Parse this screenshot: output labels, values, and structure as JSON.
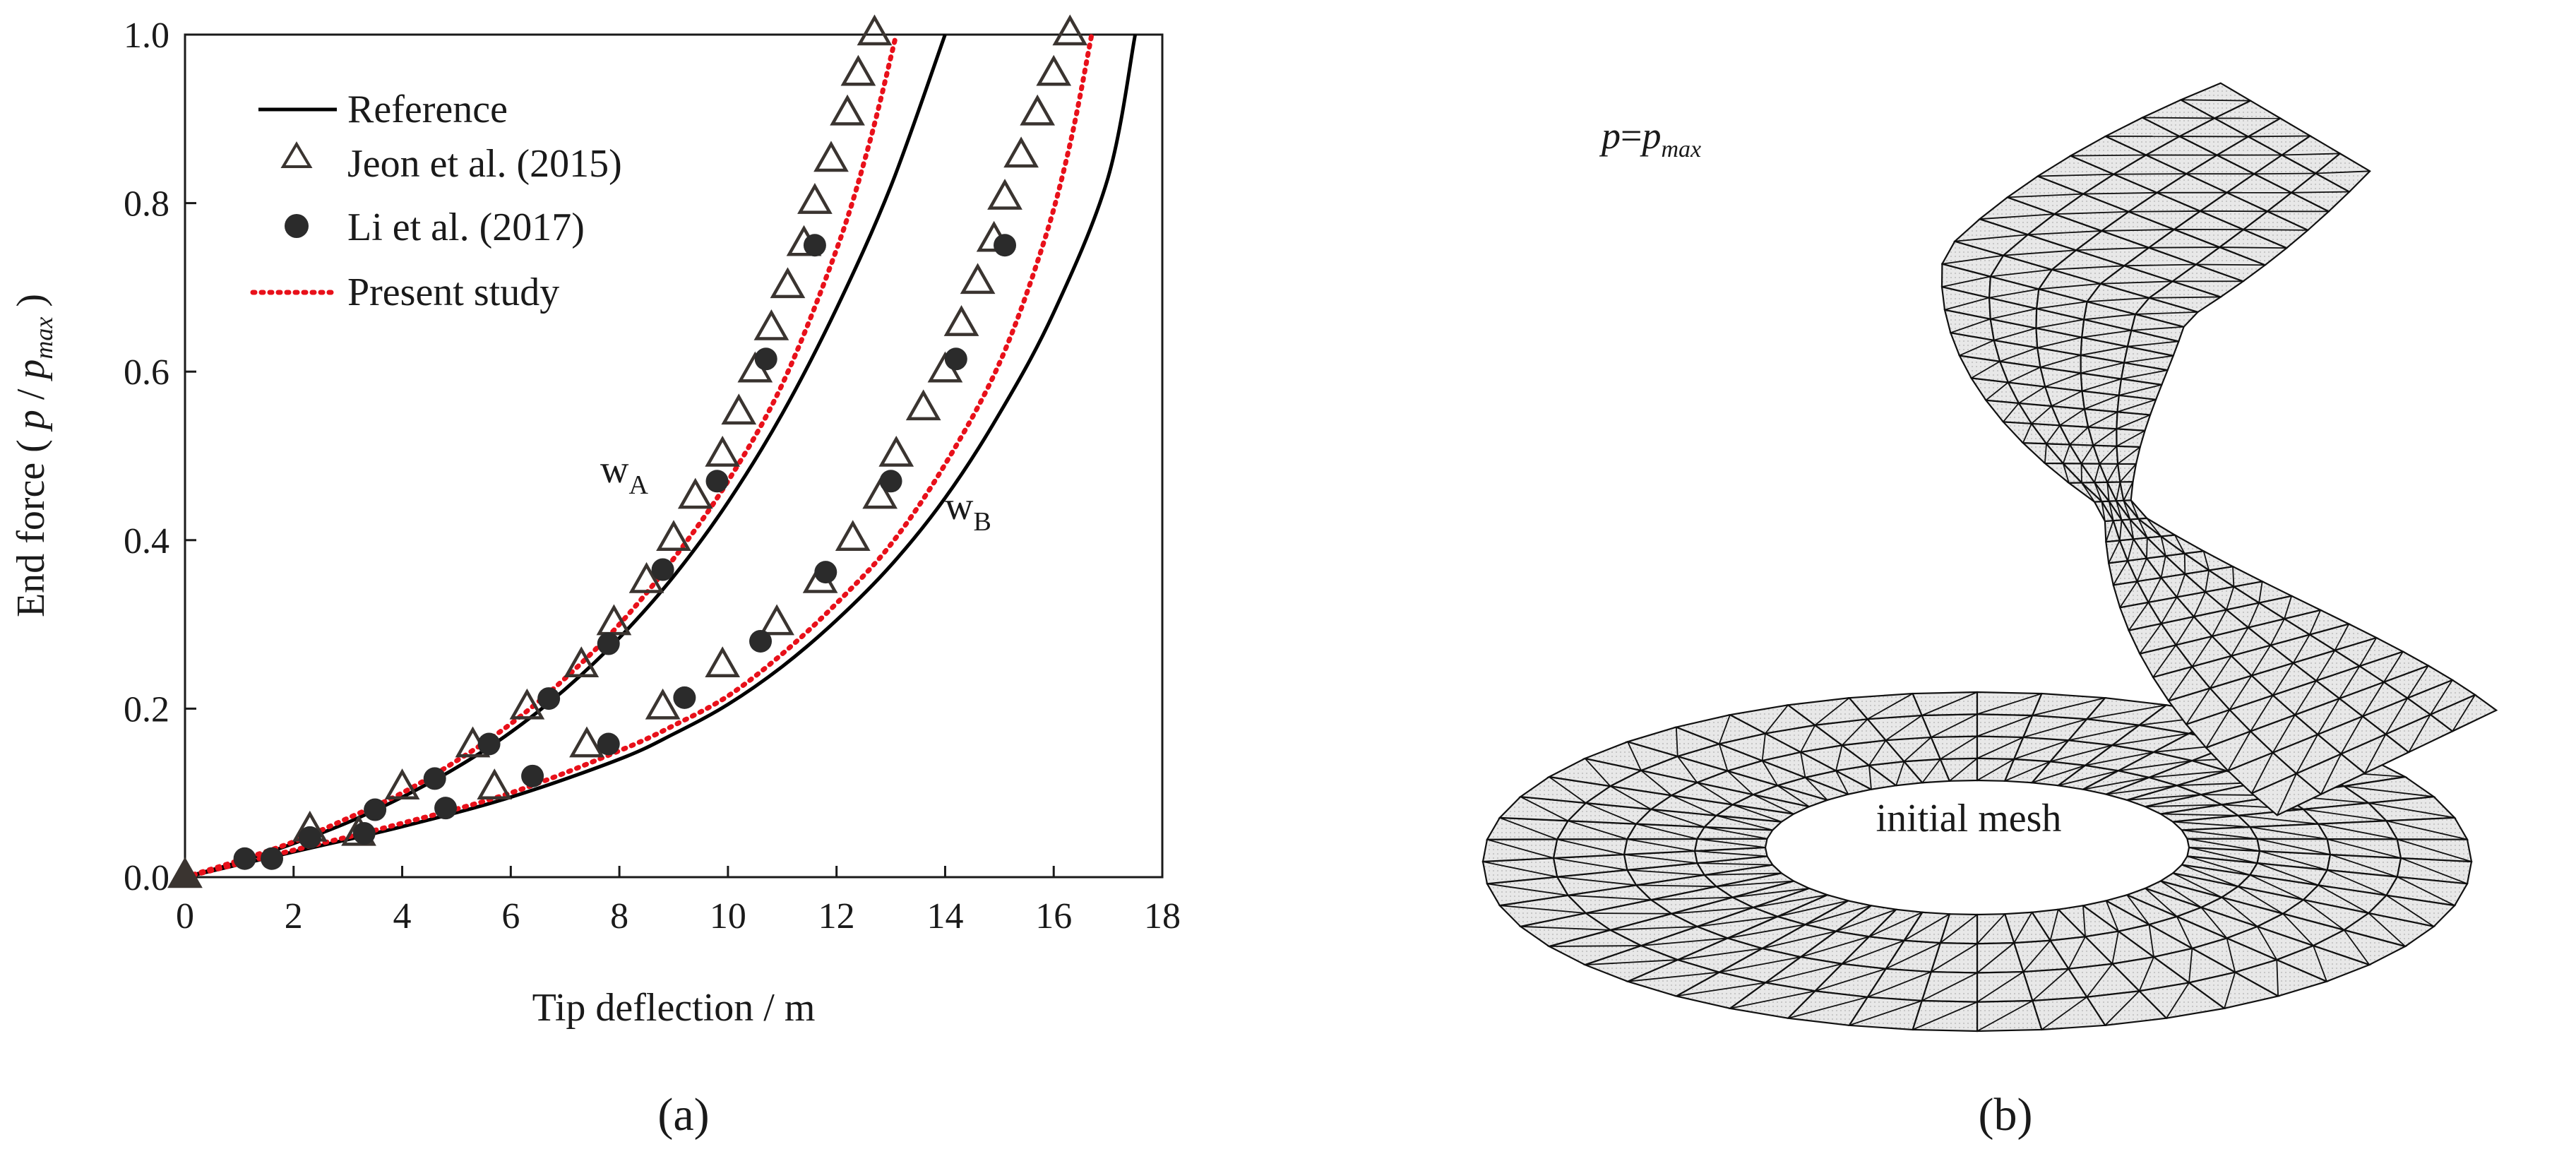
{
  "figure": {
    "panel_a_label": "(a)",
    "panel_b_label": "(b)"
  },
  "chart_data": {
    "type": "scatter",
    "xlabel": "Tip deflection / m",
    "ylabel_parts": {
      "prefix": "End force ( ",
      "p": "p",
      "slash": " / ",
      "p2": "p",
      "sub": "max",
      "suffix": " )"
    },
    "xlim": [
      0,
      18
    ],
    "ylim": [
      0,
      1.0
    ],
    "xticks": [
      0,
      2,
      4,
      6,
      8,
      10,
      12,
      14,
      16,
      18
    ],
    "yticks": [
      0.0,
      0.2,
      0.4,
      0.6,
      0.8,
      1.0
    ],
    "ytick_labels": [
      "0.0",
      "0.2",
      "0.4",
      "0.6",
      "0.8",
      "1.0"
    ],
    "grid": false,
    "legend_position": "top-left",
    "legend": [
      {
        "label": "Reference",
        "marker": "line",
        "color": "#000000"
      },
      {
        "label": "Jeon et al. (2015)",
        "marker": "open-triangle",
        "color": "#3a3430"
      },
      {
        "label": "Li et al. (2017)",
        "marker": "filled-circle",
        "color": "#2b2b2b"
      },
      {
        "label": "Present study",
        "marker": "dotted-line",
        "color": "#e8101a"
      }
    ],
    "curve_labels": [
      {
        "main": "w",
        "sub": "A"
      },
      {
        "main": "w",
        "sub": "B"
      }
    ],
    "series": [
      {
        "name": "Reference",
        "curve": "wA",
        "style": "solid",
        "points": [
          [
            0,
            0
          ],
          [
            1,
            0.018
          ],
          [
            2,
            0.04
          ],
          [
            3,
            0.065
          ],
          [
            4,
            0.095
          ],
          [
            5,
            0.13
          ],
          [
            6,
            0.172
          ],
          [
            7,
            0.223
          ],
          [
            8,
            0.284
          ],
          [
            9,
            0.357
          ],
          [
            10,
            0.445
          ],
          [
            11,
            0.55
          ],
          [
            12,
            0.675
          ],
          [
            13,
            0.82
          ],
          [
            14,
            1.0
          ]
        ]
      },
      {
        "name": "Reference",
        "curve": "wB",
        "style": "solid",
        "points": [
          [
            0,
            0
          ],
          [
            2,
            0.03
          ],
          [
            4,
            0.06
          ],
          [
            6,
            0.095
          ],
          [
            8,
            0.14
          ],
          [
            9,
            0.17
          ],
          [
            10,
            0.205
          ],
          [
            11,
            0.25
          ],
          [
            12,
            0.305
          ],
          [
            13,
            0.37
          ],
          [
            14,
            0.45
          ],
          [
            15,
            0.55
          ],
          [
            16,
            0.67
          ],
          [
            17,
            0.83
          ],
          [
            17.5,
            1.0
          ]
        ]
      },
      {
        "name": "Present study",
        "curve": "wA",
        "style": "dotted",
        "points": [
          [
            0,
            0
          ],
          [
            1,
            0.02
          ],
          [
            2,
            0.042
          ],
          [
            3,
            0.07
          ],
          [
            4,
            0.1
          ],
          [
            5,
            0.138
          ],
          [
            6,
            0.182
          ],
          [
            7,
            0.236
          ],
          [
            8,
            0.3
          ],
          [
            9,
            0.378
          ],
          [
            10,
            0.47
          ],
          [
            11,
            0.585
          ],
          [
            12,
            0.745
          ],
          [
            12.6,
            0.87
          ],
          [
            13.1,
            1.0
          ]
        ]
      },
      {
        "name": "Present study",
        "curve": "wB",
        "style": "dotted",
        "points": [
          [
            0,
            0
          ],
          [
            2,
            0.032
          ],
          [
            4,
            0.064
          ],
          [
            6,
            0.1
          ],
          [
            8,
            0.15
          ],
          [
            9,
            0.18
          ],
          [
            10,
            0.215
          ],
          [
            11,
            0.265
          ],
          [
            12,
            0.325
          ],
          [
            13,
            0.395
          ],
          [
            14,
            0.49
          ],
          [
            15,
            0.61
          ],
          [
            15.8,
            0.75
          ],
          [
            16.3,
            0.87
          ],
          [
            16.7,
            1.0
          ]
        ]
      },
      {
        "name": "Jeon et al. (2015)",
        "curve": "wA",
        "marker": "open-triangle",
        "points": [
          [
            0,
            0
          ],
          [
            2.3,
            0.055
          ],
          [
            4,
            0.105
          ],
          [
            5.3,
            0.155
          ],
          [
            6.3,
            0.2
          ],
          [
            7.3,
            0.25
          ],
          [
            7.9,
            0.3
          ],
          [
            8.5,
            0.35
          ],
          [
            9,
            0.4
          ],
          [
            9.4,
            0.45
          ],
          [
            9.9,
            0.5
          ],
          [
            10.2,
            0.55
          ],
          [
            10.5,
            0.6
          ],
          [
            10.8,
            0.65
          ],
          [
            11.1,
            0.7
          ],
          [
            11.4,
            0.75
          ],
          [
            11.6,
            0.8
          ],
          [
            11.9,
            0.85
          ],
          [
            12.2,
            0.905
          ],
          [
            12.4,
            0.952
          ],
          [
            12.7,
            1.0
          ]
        ]
      },
      {
        "name": "Jeon et al. (2015)",
        "curve": "wB",
        "marker": "open-triangle",
        "points": [
          [
            3.2,
            0.05
          ],
          [
            5.7,
            0.105
          ],
          [
            7.4,
            0.155
          ],
          [
            8.8,
            0.2
          ],
          [
            9.9,
            0.25
          ],
          [
            10.9,
            0.3
          ],
          [
            11.7,
            0.35
          ],
          [
            12.3,
            0.4
          ],
          [
            12.8,
            0.45
          ],
          [
            13.1,
            0.5
          ],
          [
            13.6,
            0.555
          ],
          [
            14.0,
            0.6
          ],
          [
            14.3,
            0.655
          ],
          [
            14.6,
            0.705
          ],
          [
            14.9,
            0.755
          ],
          [
            15.1,
            0.805
          ],
          [
            15.4,
            0.855
          ],
          [
            15.7,
            0.905
          ],
          [
            16.0,
            0.952
          ],
          [
            16.3,
            1.0
          ]
        ]
      },
      {
        "name": "Li et al. (2017)",
        "curve": "wA",
        "marker": "filled-circle",
        "points": [
          [
            1.1,
            0.022
          ],
          [
            2.3,
            0.047
          ],
          [
            3.5,
            0.08
          ],
          [
            4.6,
            0.117
          ],
          [
            5.6,
            0.158
          ],
          [
            6.7,
            0.212
          ],
          [
            7.8,
            0.277
          ],
          [
            8.8,
            0.365
          ],
          [
            9.8,
            0.47
          ],
          [
            10.7,
            0.615
          ],
          [
            11.6,
            0.75
          ]
        ]
      },
      {
        "name": "Li et al. (2017)",
        "curve": "wB",
        "marker": "filled-circle",
        "points": [
          [
            1.6,
            0.022
          ],
          [
            3.3,
            0.052
          ],
          [
            4.8,
            0.082
          ],
          [
            6.4,
            0.12
          ],
          [
            7.8,
            0.158
          ],
          [
            9.2,
            0.213
          ],
          [
            10.6,
            0.28
          ],
          [
            11.8,
            0.362
          ],
          [
            13.0,
            0.47
          ],
          [
            14.2,
            0.615
          ],
          [
            15.1,
            0.75
          ]
        ]
      }
    ]
  },
  "mesh_panel": {
    "label_p": "p",
    "label_eq": "=",
    "label_pmax_base": "p",
    "label_pmax_sub": "max",
    "initial_label": "initial mesh"
  }
}
